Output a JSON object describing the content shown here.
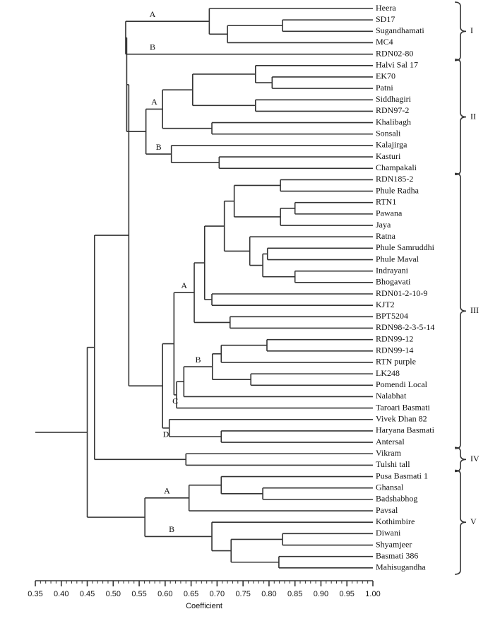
{
  "chart_data": {
    "type": "dendrogram",
    "xlabel": "Coefficient",
    "xlim": [
      0.35,
      1.0
    ],
    "xticks": [
      0.35,
      {
        "value": 0.4,
        "label": "0.40"
      },
      0.45,
      {
        "value": 0.5,
        "label": "0.50"
      },
      0.55,
      {
        "value": 0.6,
        "label": "0.60"
      },
      0.65,
      {
        "value": 0.7,
        "label": "0.70"
      },
      0.75,
      {
        "value": 0.8,
        "label": "0.80"
      },
      0.85,
      {
        "value": 0.9,
        "label": "0.90"
      },
      0.95,
      {
        "value": 1.0,
        "label": "1.00"
      }
    ],
    "xminorticks": [
      0.36,
      0.37,
      0.38,
      0.39,
      0.41,
      0.42,
      0.43,
      0.44,
      0.46,
      0.47,
      0.48,
      0.49,
      0.51,
      0.52,
      0.53,
      0.54,
      0.56,
      0.57,
      0.58,
      0.59,
      0.61,
      0.62,
      0.63,
      0.64,
      0.66,
      0.67,
      0.68,
      0.69,
      0.71,
      0.72,
      0.73,
      0.74,
      0.76,
      0.77,
      0.78,
      0.79,
      0.81,
      0.82,
      0.83,
      0.84,
      0.86,
      0.87,
      0.88,
      0.89,
      0.91,
      0.92,
      0.93,
      0.94,
      0.96,
      0.97,
      0.98,
      0.99
    ],
    "tree": {
      "height": 0.45,
      "children": [
        {
          "height": 0.464,
          "children": [
            {
              "height": 0.53,
              "children": [
                {
                  "height": 0.526,
                  "children": [
                    {
                      "height": 0.524,
                      "cluster": "I",
                      "children": [
                        {
                          "height": 0.685,
                          "branch": "A",
                          "children": [
                            {
                              "label": "Heera"
                            },
                            {
                              "height": 0.72,
                              "children": [
                                {
                                  "height": 0.826,
                                  "children": [
                                    {
                                      "label": "SD17"
                                    },
                                    {
                                      "label": "Sugandhamati"
                                    }
                                  ]
                                },
                                {
                                  "label": "MC4"
                                }
                              ]
                            }
                          ]
                        },
                        {
                          "label": "RDN02-80",
                          "branch": "B"
                        }
                      ]
                    },
                    {
                      "height": 0.563,
                      "cluster": "II",
                      "children": [
                        {
                          "height": 0.595,
                          "branch": "A",
                          "children": [
                            {
                              "height": 0.653,
                              "children": [
                                {
                                  "height": 0.774,
                                  "children": [
                                    {
                                      "label": "Halvi Sal 17"
                                    },
                                    {
                                      "height": 0.806,
                                      "children": [
                                        {
                                          "label": "EK70"
                                        },
                                        {
                                          "label": "Patni"
                                        }
                                      ]
                                    }
                                  ]
                                },
                                {
                                  "height": 0.774,
                                  "children": [
                                    {
                                      "label": "Siddhagiri"
                                    },
                                    {
                                      "label": "RDN97-2"
                                    }
                                  ]
                                }
                              ]
                            },
                            {
                              "height": 0.69,
                              "children": [
                                {
                                  "label": "Khalibagh"
                                },
                                {
                                  "label": "Sonsali"
                                }
                              ]
                            }
                          ]
                        },
                        {
                          "height": 0.612,
                          "branch": "B",
                          "children": [
                            {
                              "label": "Kalajirga"
                            },
                            {
                              "height": 0.704,
                              "children": [
                                {
                                  "label": "Kasturi"
                                },
                                {
                                  "label": "Champakali"
                                }
                              ]
                            }
                          ]
                        }
                      ]
                    }
                  ]
                },
                {
                  "height": 0.595,
                  "cluster": "III",
                  "children": [
                    {
                      "height": 0.617,
                      "children": [
                        {
                          "height": 0.656,
                          "branch": "A",
                          "children": [
                            {
                              "height": 0.676,
                              "children": [
                                {
                                  "height": 0.714,
                                  "children": [
                                    {
                                      "height": 0.733,
                                      "children": [
                                        {
                                          "height": 0.822,
                                          "children": [
                                            {
                                              "label": "RDN185-2"
                                            },
                                            {
                                              "label": "Phule Radha"
                                            }
                                          ]
                                        },
                                        {
                                          "height": 0.822,
                                          "children": [
                                            {
                                              "height": 0.85,
                                              "children": [
                                                {
                                                  "label": "RTN1"
                                                },
                                                {
                                                  "label": "Pawana"
                                                }
                                              ]
                                            },
                                            {
                                              "label": "Jaya"
                                            }
                                          ]
                                        }
                                      ]
                                    },
                                    {
                                      "height": 0.763,
                                      "children": [
                                        {
                                          "label": "Ratna"
                                        },
                                        {
                                          "height": 0.788,
                                          "children": [
                                            {
                                              "height": 0.797,
                                              "children": [
                                                {
                                                  "label": "Phule Samruddhi"
                                                },
                                                {
                                                  "label": "Phule Maval"
                                                }
                                              ]
                                            },
                                            {
                                              "height": 0.85,
                                              "children": [
                                                {
                                                  "label": "Indrayani"
                                                },
                                                {
                                                  "label": "Bhogavati"
                                                }
                                              ]
                                            }
                                          ]
                                        }
                                      ]
                                    }
                                  ]
                                },
                                {
                                  "height": 0.69,
                                  "children": [
                                    {
                                      "label": "RDN01-2-10-9"
                                    },
                                    {
                                      "label": "KJT2"
                                    }
                                  ]
                                }
                              ]
                            },
                            {
                              "height": 0.725,
                              "children": [
                                {
                                  "label": "BPT5204"
                                },
                                {
                                  "label": "RDN98-2-3-5-14"
                                }
                              ]
                            }
                          ]
                        },
                        {
                          "height": 0.622,
                          "branch": "C",
                          "children": [
                            {
                              "height": 0.636,
                              "children": [
                                {
                                  "height": 0.691,
                                  "branch": "B",
                                  "children": [
                                    {
                                      "height": 0.708,
                                      "children": [
                                        {
                                          "height": 0.796,
                                          "children": [
                                            {
                                              "label": "RDN99-12"
                                            },
                                            {
                                              "label": "RDN99-14"
                                            }
                                          ]
                                        },
                                        {
                                          "label": "RTN purple"
                                        }
                                      ]
                                    },
                                    {
                                      "height": 0.765,
                                      "children": [
                                        {
                                          "label": "LK248"
                                        },
                                        {
                                          "label": "Pomendi Local"
                                        }
                                      ]
                                    }
                                  ]
                                },
                                {
                                  "label": "Nalabhat"
                                }
                              ]
                            },
                            {
                              "label": "Taroari Basmati"
                            }
                          ]
                        }
                      ]
                    },
                    {
                      "height": 0.608,
                      "branch": "D",
                      "children": [
                        {
                          "label": "Vivek Dhan 82"
                        },
                        {
                          "height": 0.708,
                          "children": [
                            {
                              "label": "Haryana Basmati"
                            },
                            {
                              "label": "Antersal"
                            }
                          ]
                        }
                      ]
                    }
                  ]
                }
              ]
            },
            {
              "height": 0.64,
              "cluster": "IV",
              "children": [
                {
                  "label": "Vikram"
                },
                {
                  "label": "Tulshi tall"
                }
              ]
            }
          ]
        },
        {
          "height": 0.561,
          "cluster": "V",
          "children": [
            {
              "height": 0.646,
              "branch": "A",
              "children": [
                {
                  "height": 0.708,
                  "children": [
                    {
                      "label": "Pusa Basmati 1"
                    },
                    {
                      "height": 0.788,
                      "children": [
                        {
                          "label": "Ghansal"
                        },
                        {
                          "label": "Badshabhog"
                        }
                      ]
                    }
                  ]
                },
                {
                  "label": "Pavsal"
                }
              ]
            },
            {
              "height": 0.69,
              "branch": "B",
              "children": [
                {
                  "label": "Kothimbire"
                },
                {
                  "height": 0.727,
                  "children": [
                    {
                      "height": 0.826,
                      "children": [
                        {
                          "label": "Diwani"
                        },
                        {
                          "label": "Shyamjeer"
                        }
                      ]
                    },
                    {
                      "height": 0.819,
                      "children": [
                        {
                          "label": "Basmati 386"
                        },
                        {
                          "label": "Mahisugandha"
                        }
                      ]
                    }
                  ]
                }
              ]
            }
          ]
        }
      ]
    }
  }
}
